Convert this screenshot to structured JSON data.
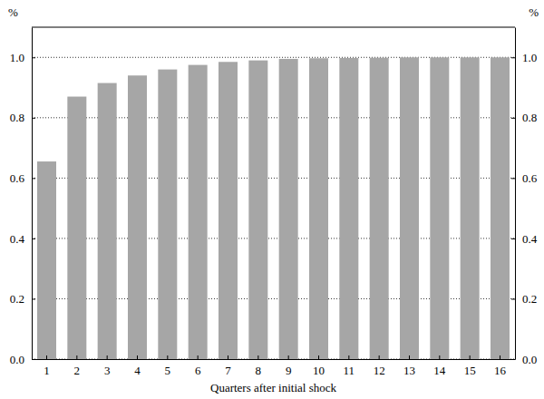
{
  "chart_data": {
    "type": "bar",
    "ylabel": "%",
    "xlabel": "Quarters after initial shock",
    "categories": [
      "1",
      "2",
      "3",
      "4",
      "5",
      "6",
      "7",
      "8",
      "9",
      "10",
      "11",
      "12",
      "13",
      "14",
      "15",
      "16"
    ],
    "values": [
      0.655,
      0.87,
      0.915,
      0.94,
      0.96,
      0.975,
      0.985,
      0.99,
      0.995,
      0.997,
      0.998,
      0.999,
      1.0,
      1.0,
      1.0,
      1.0
    ],
    "color": "#a6a6a6",
    "ylim": [
      0,
      1.1
    ],
    "yticks": [
      {
        "value": 0,
        "label": "0.0"
      },
      0.2,
      0.4,
      0.6,
      0.8,
      {
        "value": 1,
        "label": "1.0"
      }
    ],
    "grid": true
  }
}
